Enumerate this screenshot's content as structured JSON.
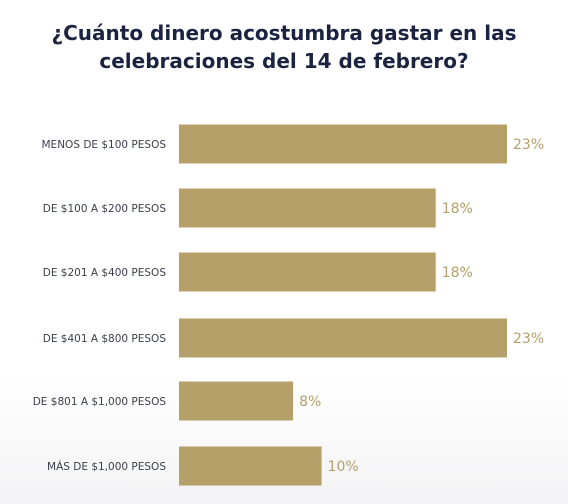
{
  "chart_data": {
    "type": "bar",
    "orientation": "horizontal",
    "title_lines": [
      "¿Cuánto dinero acostumbra gastar en las",
      "celebraciones del 14 de febrero?"
    ],
    "categories": [
      "MENOS DE $100 PESOS",
      "DE $100 A $200 PESOS",
      "DE $201 A $400 PESOS",
      "DE $401 A $800 PESOS",
      "DE $801 A $1,000 PESOS",
      "MÁS DE $1,000 PESOS"
    ],
    "values": [
      23,
      18,
      18,
      23,
      8,
      10
    ],
    "value_labels": [
      "23%",
      "18%",
      "18%",
      "23%",
      "8%",
      "10%"
    ],
    "bar_color": "#b5a06a",
    "title_color": "#1c2340",
    "grid": false,
    "legend": "none"
  }
}
